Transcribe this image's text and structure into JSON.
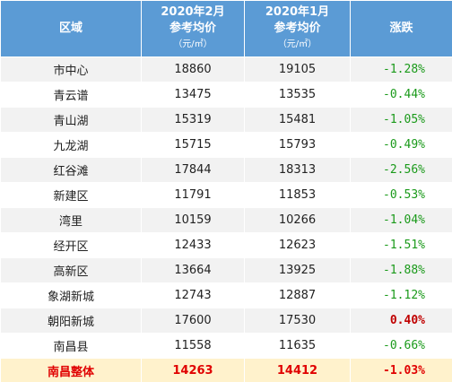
{
  "table": {
    "header": [
      "区域",
      [
        "2020年2月",
        "参考均价",
        "（元/㎡）"
      ],
      [
        "2020年1月",
        "参考均价",
        "（元/㎡）"
      ],
      "涨跌"
    ],
    "rows": [
      [
        "市中心",
        18860,
        19105,
        "-1.28%"
      ],
      [
        "青云谱",
        13475,
        13535,
        "-0.44%"
      ],
      [
        "青山湖",
        15319,
        15481,
        "-1.05%"
      ],
      [
        "九龙湖",
        15715,
        15793,
        "-0.49%"
      ],
      [
        "红谷滩",
        17844,
        18313,
        "-2.56%"
      ],
      [
        "新建区",
        11791,
        11853,
        "-0.53%"
      ],
      [
        "湾里",
        10159,
        10266,
        "-1.04%"
      ],
      [
        "经开区",
        12433,
        12623,
        "-1.51%"
      ],
      [
        "高新区",
        13664,
        13925,
        "-1.88%"
      ],
      [
        "象湖新城",
        12743,
        12887,
        "-1.12%"
      ],
      [
        "朝阳新城",
        17600,
        17530,
        "0.40%"
      ],
      [
        "南昌县",
        11558,
        11635,
        "-0.66%"
      ]
    ],
    "total": [
      "南昌整体",
      14263,
      14412,
      "-1.03%"
    ]
  }
}
